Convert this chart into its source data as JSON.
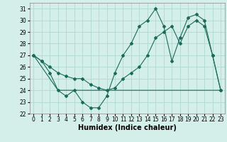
{
  "line1_x": [
    0,
    1,
    2,
    3,
    4,
    5,
    6,
    7,
    8,
    9,
    10,
    11,
    12,
    13,
    14,
    15,
    16,
    17,
    18,
    19,
    20,
    21,
    22,
    23
  ],
  "line1_y": [
    27,
    26.5,
    25.5,
    24,
    23.5,
    24,
    23,
    22.5,
    22.5,
    23.5,
    25.5,
    27,
    28,
    29.5,
    30,
    31,
    29.5,
    26.5,
    28.5,
    30.25,
    30.5,
    30,
    27,
    24
  ],
  "line2_x": [
    0,
    1,
    2,
    3,
    4,
    5,
    6,
    7,
    8,
    9,
    10,
    11,
    12,
    13,
    14,
    15,
    16,
    17,
    18,
    19,
    20,
    21,
    22,
    23
  ],
  "line2_y": [
    27,
    26.5,
    26,
    25.5,
    25.2,
    25,
    25,
    24.5,
    24.2,
    24,
    24.2,
    25,
    25.5,
    26,
    27,
    28.5,
    29,
    29.5,
    28,
    29.5,
    30,
    29.5,
    27,
    24
  ],
  "line3_x": [
    0,
    3,
    4,
    5,
    6,
    7,
    8,
    9,
    10,
    14,
    15,
    16,
    17,
    21,
    22,
    23
  ],
  "line3_y": [
    27,
    24,
    24,
    24,
    24,
    24,
    24,
    24,
    24,
    24,
    24,
    24,
    24,
    24,
    24,
    24
  ],
  "line_color": "#1a6b5a",
  "bg_color": "#d4eeea",
  "grid_color": "#b0d8d0",
  "xlabel": "Humidex (Indice chaleur)",
  "ylim": [
    22,
    31.5
  ],
  "xlim": [
    -0.5,
    23.5
  ],
  "yticks": [
    22,
    23,
    24,
    25,
    26,
    27,
    28,
    29,
    30,
    31
  ],
  "xticks": [
    0,
    1,
    2,
    3,
    4,
    5,
    6,
    7,
    8,
    9,
    10,
    11,
    12,
    13,
    14,
    15,
    16,
    17,
    18,
    19,
    20,
    21,
    22,
    23
  ],
  "tick_fontsize": 5.5,
  "xlabel_fontsize": 7
}
